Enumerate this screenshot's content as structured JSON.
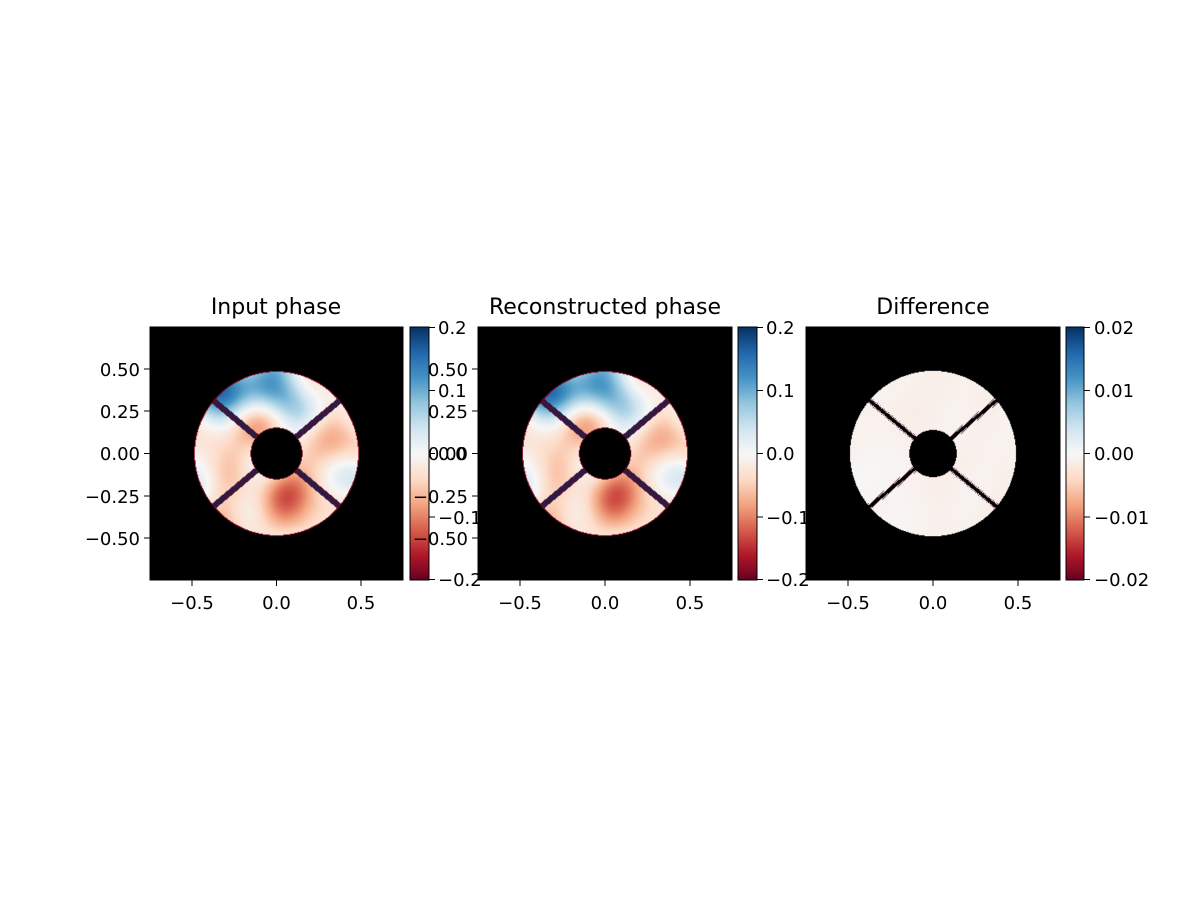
{
  "chart_data": [
    {
      "type": "heatmap",
      "title": "Input phase",
      "xlim": [
        -0.75,
        0.75
      ],
      "ylim": [
        -0.75,
        0.75
      ],
      "xticks": [
        -0.5,
        0.0,
        0.5
      ],
      "xtick_labels": [
        "−0.5",
        "0.0",
        "0.5"
      ],
      "yticks": [
        0.5,
        0.25,
        0.0,
        -0.25,
        -0.5
      ],
      "ytick_labels": [
        "0.50",
        "0.25",
        "0.00",
        "−0.25",
        "−0.50"
      ],
      "aperture": {
        "outer_radius": 0.49,
        "inner_radius": 0.15,
        "spider_angles_deg": [
          40,
          140,
          220,
          320
        ]
      },
      "colormap": "RdBu",
      "colorbar": {
        "range": [
          -0.2,
          0.2
        ],
        "ticks": [
          0.2,
          0.1,
          0.0,
          -0.1,
          -0.2
        ],
        "tick_labels": [
          "0.2",
          "0.1",
          "0.0",
          "−0.1",
          "−0.2"
        ]
      },
      "field": {
        "amplitude": 0.09,
        "seed": 7
      }
    },
    {
      "type": "heatmap",
      "title": "Reconstructed phase",
      "xlim": [
        -0.75,
        0.75
      ],
      "ylim": [
        -0.75,
        0.75
      ],
      "xticks": [
        -0.5,
        0.0,
        0.5
      ],
      "xtick_labels": [
        "−0.5",
        "0.0",
        "0.5"
      ],
      "yticks": [
        0.5,
        0.25,
        0.0,
        -0.25,
        -0.5
      ],
      "ytick_labels": [
        "0.50",
        "0.25",
        "0.00",
        "−0.25",
        "−0.50"
      ],
      "aperture": {
        "outer_radius": 0.49,
        "inner_radius": 0.15,
        "spider_angles_deg": [
          40,
          140,
          220,
          320
        ]
      },
      "colormap": "RdBu",
      "colorbar": {
        "range": [
          -0.2,
          0.2
        ],
        "ticks": [
          0.2,
          0.1,
          0.0,
          -0.1,
          -0.2
        ],
        "tick_labels": [
          "0.2",
          "0.1",
          "0.0",
          "−0.1",
          "−0.2"
        ]
      },
      "field": {
        "amplitude": 0.09,
        "seed": 7
      }
    },
    {
      "type": "heatmap",
      "title": "Difference",
      "xlim": [
        -0.75,
        0.75
      ],
      "ylim": [
        -0.75,
        0.75
      ],
      "xticks": [
        -0.5,
        0.0,
        0.5
      ],
      "xtick_labels": [
        "−0.5",
        "0.0",
        "0.5"
      ],
      "aperture": {
        "outer_radius": 0.49,
        "inner_radius": 0.14,
        "spider_angles_deg": [
          40,
          140,
          220,
          320
        ]
      },
      "colormap": "RdBu",
      "colorbar": {
        "range": [
          -0.02,
          0.02
        ],
        "ticks": [
          0.02,
          0.01,
          0.0,
          -0.01,
          -0.02
        ],
        "tick_labels": [
          "0.02",
          "0.01",
          "0.00",
          "−0.01",
          "−0.02"
        ]
      },
      "field": {
        "amplitude": 0.0008,
        "seed": 3
      }
    }
  ],
  "colors": {
    "background_mask": "#000000",
    "colormap_stops": [
      "#67001f",
      "#b2182b",
      "#d6604d",
      "#f4a582",
      "#fddbc7",
      "#f7f7f7",
      "#d1e5f0",
      "#92c5de",
      "#4393c3",
      "#2166ac",
      "#053061"
    ]
  }
}
